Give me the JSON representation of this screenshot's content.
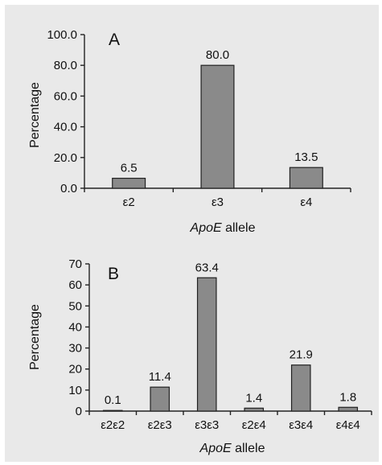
{
  "chart_data": [
    {
      "type": "bar",
      "panel_label": "A",
      "categories": [
        "ε2",
        "ε3",
        "ε4"
      ],
      "values": [
        6.5,
        80.0,
        13.5
      ],
      "value_labels": [
        "6.5",
        "80.0",
        "13.5"
      ],
      "yticks": [
        "0.0",
        "20.0",
        "40.0",
        "60.0",
        "80.0",
        "100.0"
      ],
      "ylim": [
        0,
        100
      ],
      "ylabel": "Percentage",
      "xlabel_italic": "ApoE",
      "xlabel_rest": " allele",
      "grid": false,
      "bar_color": "#8a8a8a"
    },
    {
      "type": "bar",
      "panel_label": "B",
      "categories": [
        "ε2ε2",
        "ε2ε3",
        "ε3ε3",
        "ε2ε4",
        "ε3ε4",
        "ε4ε4"
      ],
      "values": [
        0.1,
        11.4,
        63.4,
        1.4,
        21.9,
        1.8
      ],
      "value_labels": [
        "0.1",
        "11.4",
        "63.4",
        "1.4",
        "21.9",
        "1.8"
      ],
      "yticks": [
        "0",
        "10",
        "20",
        "30",
        "40",
        "50",
        "60",
        "70"
      ],
      "ylim": [
        0,
        70
      ],
      "ylabel": "Percentage",
      "xlabel_italic": "ApoE",
      "xlabel_rest": " allele",
      "grid": false,
      "bar_color": "#8a8a8a"
    }
  ]
}
